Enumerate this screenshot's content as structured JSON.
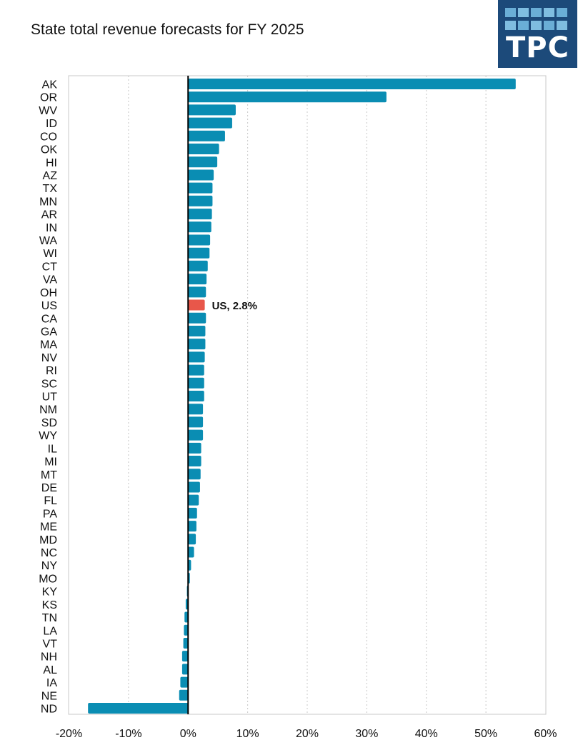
{
  "title": "State total revenue forecasts for FY 2025",
  "logo": {
    "text": "TPC",
    "bg": "#1c4a7a",
    "tile_color": "#6aaed6"
  },
  "colors": {
    "bar": "#0a8db3",
    "highlight": "#e8574a",
    "grid": "#c8c8c8",
    "zero": "#000000"
  },
  "chart_data": {
    "type": "bar",
    "orientation": "horizontal",
    "title": "State total revenue forecasts for FY 2025",
    "xlabel": "",
    "ylabel": "",
    "xlim": [
      -20,
      60
    ],
    "xticks": [
      -20,
      -10,
      0,
      10,
      20,
      30,
      40,
      50,
      60
    ],
    "xtick_labels": [
      "-20%",
      "-10%",
      "0%",
      "10%",
      "20%",
      "30%",
      "40%",
      "50%",
      "60%"
    ],
    "grid": "vertical dotted",
    "categories": [
      "AK",
      "OR",
      "WV",
      "ID",
      "CO",
      "OK",
      "HI",
      "AZ",
      "TX",
      "MN",
      "AR",
      "IN",
      "WA",
      "WI",
      "CT",
      "VA",
      "OH",
      "US",
      "CA",
      "GA",
      "MA",
      "NV",
      "RI",
      "SC",
      "UT",
      "NM",
      "SD",
      "WY",
      "IL",
      "MI",
      "MT",
      "DE",
      "FL",
      "PA",
      "ME",
      "MD",
      "NC",
      "NY",
      "MO",
      "KY",
      "KS",
      "TN",
      "LA",
      "VT",
      "NH",
      "AL",
      "IA",
      "NE",
      "ND"
    ],
    "values": [
      55.0,
      33.3,
      8.0,
      7.4,
      6.2,
      5.2,
      4.9,
      4.3,
      4.1,
      4.1,
      4.0,
      3.9,
      3.7,
      3.6,
      3.3,
      3.1,
      3.0,
      2.8,
      3.0,
      2.9,
      2.9,
      2.8,
      2.7,
      2.7,
      2.7,
      2.5,
      2.5,
      2.5,
      2.2,
      2.2,
      2.1,
      2.0,
      1.8,
      1.5,
      1.4,
      1.3,
      1.0,
      0.5,
      0.3,
      -0.2,
      -0.4,
      -0.6,
      -0.7,
      -0.8,
      -1.0,
      -1.0,
      -1.3,
      -1.5,
      -16.8
    ],
    "highlight": "US",
    "annotations": [
      {
        "category": "US",
        "text": "US, 2.8%"
      }
    ]
  }
}
